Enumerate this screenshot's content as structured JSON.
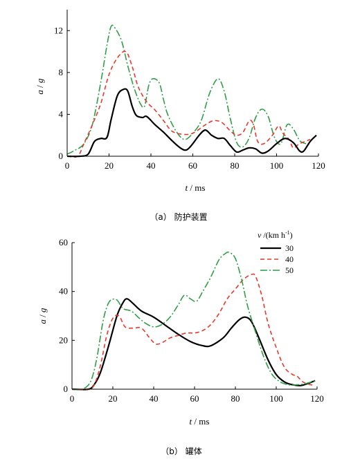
{
  "chart_data": [
    {
      "type": "line",
      "id": "a",
      "caption": "（a） 防护装置",
      "xlabel_var": "t",
      "xlabel_unit": " / ms",
      "ylabel_var1": "a",
      "ylabel_sep": " / ",
      "ylabel_var2": "g",
      "xlim": [
        0,
        120
      ],
      "ylim": [
        0,
        14
      ],
      "xticks": [
        0,
        20,
        40,
        60,
        80,
        100,
        120
      ],
      "yticks": [
        0,
        4,
        8,
        12
      ],
      "yticklabels": [
        "0",
        "4",
        "8",
        "12"
      ],
      "series": [
        {
          "key": "v50",
          "color": "#2e9e45",
          "dash": "10,3,2,3",
          "width": 1.6,
          "points": [
            [
              0,
              0.2
            ],
            [
              4,
              0.6
            ],
            [
              8,
              1.2
            ],
            [
              12,
              3
            ],
            [
              16,
              7
            ],
            [
              19,
              10.6
            ],
            [
              21,
              12.4
            ],
            [
              23,
              12.2
            ],
            [
              26,
              11
            ],
            [
              29,
              8.6
            ],
            [
              32,
              6.5
            ],
            [
              35,
              5
            ],
            [
              37,
              4.8
            ],
            [
              39,
              6.8
            ],
            [
              41,
              7.4
            ],
            [
              44,
              7
            ],
            [
              46,
              5.4
            ],
            [
              48,
              4
            ],
            [
              52,
              2.4
            ],
            [
              56,
              1.6
            ],
            [
              60,
              2.2
            ],
            [
              64,
              3.4
            ],
            [
              68,
              6
            ],
            [
              72,
              7.4
            ],
            [
              75,
              6.2
            ],
            [
              78,
              3.5
            ],
            [
              81,
              1.3
            ],
            [
              84,
              0.9
            ],
            [
              87,
              1.8
            ],
            [
              90,
              3.7
            ],
            [
              93,
              4.5
            ],
            [
              96,
              3.8
            ],
            [
              99,
              1.8
            ],
            [
              102,
              1.2
            ],
            [
              105,
              3
            ],
            [
              108,
              2.6
            ],
            [
              111,
              1.5
            ],
            [
              114,
              1.2
            ],
            [
              116,
              1.2
            ]
          ]
        },
        {
          "key": "v40",
          "color": "#e8382a",
          "dash": "6,4",
          "width": 1.6,
          "points": [
            [
              0,
              0
            ],
            [
              5,
              0
            ],
            [
              8,
              1.2
            ],
            [
              12,
              3
            ],
            [
              16,
              5
            ],
            [
              20,
              7.8
            ],
            [
              24,
              9.4
            ],
            [
              28,
              10
            ],
            [
              31,
              8.6
            ],
            [
              34,
              6.6
            ],
            [
              38,
              5.2
            ],
            [
              42,
              4.4
            ],
            [
              46,
              3.4
            ],
            [
              50,
              2.4
            ],
            [
              55,
              2.1
            ],
            [
              60,
              2.2
            ],
            [
              66,
              3
            ],
            [
              70,
              3.4
            ],
            [
              74,
              3.2
            ],
            [
              78,
              2.4
            ],
            [
              81,
              2
            ],
            [
              84,
              2.3
            ],
            [
              87,
              3.4
            ],
            [
              89,
              3
            ],
            [
              91,
              1.4
            ],
            [
              94,
              1.2
            ],
            [
              98,
              2
            ],
            [
              101,
              2.9
            ],
            [
              103,
              2.2
            ],
            [
              106,
              1.6
            ],
            [
              108,
              0.8
            ],
            [
              111,
              1.2
            ],
            [
              116,
              1.6
            ]
          ]
        },
        {
          "key": "v30",
          "color": "#000000",
          "dash": "",
          "width": 2.2,
          "points": [
            [
              0,
              0
            ],
            [
              6,
              0
            ],
            [
              10,
              0.2
            ],
            [
              13,
              1.4
            ],
            [
              16,
              1.7
            ],
            [
              19,
              1.8
            ],
            [
              21,
              3.5
            ],
            [
              24,
              5.8
            ],
            [
              27,
              6.4
            ],
            [
              29,
              6.2
            ],
            [
              31,
              4.8
            ],
            [
              33,
              3.9
            ],
            [
              36,
              3.7
            ],
            [
              38,
              3.8
            ],
            [
              42,
              3
            ],
            [
              46,
              2.3
            ],
            [
              50,
              1.5
            ],
            [
              54,
              0.8
            ],
            [
              57,
              0.6
            ],
            [
              60,
              1.2
            ],
            [
              63,
              2
            ],
            [
              66,
              2.5
            ],
            [
              69,
              2
            ],
            [
              72,
              1.7
            ],
            [
              75,
              1.7
            ],
            [
              78,
              1
            ],
            [
              81,
              0.4
            ],
            [
              84,
              0.6
            ],
            [
              87,
              0.8
            ],
            [
              90,
              0.7
            ],
            [
              93,
              0.3
            ],
            [
              96,
              0.5
            ],
            [
              100,
              1.2
            ],
            [
              104,
              1.7
            ],
            [
              108,
              1.3
            ],
            [
              111,
              0.5
            ],
            [
              113,
              0.5
            ],
            [
              116,
              1.4
            ],
            [
              119,
              2
            ]
          ]
        }
      ]
    },
    {
      "type": "line",
      "id": "b",
      "caption": "（b） 罐体",
      "xlabel_var": "t",
      "xlabel_unit": " / ms",
      "ylabel_var1": "a",
      "ylabel_sep": " / ",
      "ylabel_var2": "g",
      "xlim": [
        0,
        120
      ],
      "ylim": [
        0,
        60
      ],
      "xticks": [
        0,
        20,
        40,
        60,
        80,
        100,
        120
      ],
      "yticks": [
        0,
        20,
        40,
        60
      ],
      "yticklabels": [
        "0",
        "20",
        "40",
        "60"
      ],
      "legend_title_var": "v",
      "legend_title_unit": " /(km h",
      "legend_title_sup": "-1",
      "legend_title_end": ")",
      "legend_placement": "top-right",
      "series": [
        {
          "key": "v30",
          "name": "30",
          "color": "#000000",
          "dash": "",
          "width": 2.2,
          "points": [
            [
              0,
              0
            ],
            [
              8,
              0
            ],
            [
              11,
              2
            ],
            [
              14,
              7
            ],
            [
              18,
              18
            ],
            [
              22,
              30
            ],
            [
              25,
              35.5
            ],
            [
              27,
              37
            ],
            [
              30,
              35
            ],
            [
              34,
              32
            ],
            [
              40,
              29.5
            ],
            [
              46,
              26
            ],
            [
              52,
              22.5
            ],
            [
              58,
              19.5
            ],
            [
              64,
              17.8
            ],
            [
              68,
              17.8
            ],
            [
              74,
              21
            ],
            [
              78,
              25
            ],
            [
              82,
              28.5
            ],
            [
              85,
              29.5
            ],
            [
              88,
              27.5
            ],
            [
              92,
              20
            ],
            [
              96,
              12
            ],
            [
              100,
              6
            ],
            [
              104,
              3
            ],
            [
              108,
              1.8
            ],
            [
              112,
              1.5
            ],
            [
              116,
              2.5
            ],
            [
              119,
              3.5
            ]
          ]
        },
        {
          "key": "v40",
          "name": "40",
          "color": "#e8382a",
          "dash": "6,4",
          "width": 1.6,
          "points": [
            [
              0,
              0
            ],
            [
              8,
              0
            ],
            [
              11,
              2
            ],
            [
              14,
              10
            ],
            [
              17,
              22
            ],
            [
              20,
              29
            ],
            [
              23,
              30
            ],
            [
              26,
              25.5
            ],
            [
              30,
              25
            ],
            [
              34,
              25
            ],
            [
              38,
              21
            ],
            [
              41,
              18.5
            ],
            [
              44,
              19
            ],
            [
              48,
              21
            ],
            [
              52,
              22
            ],
            [
              56,
              23
            ],
            [
              60,
              23
            ],
            [
              64,
              24
            ],
            [
              68,
              26.5
            ],
            [
              72,
              31
            ],
            [
              76,
              37
            ],
            [
              80,
              41
            ],
            [
              84,
              45
            ],
            [
              88,
              47
            ],
            [
              90,
              46
            ],
            [
              93,
              38
            ],
            [
              96,
              27
            ],
            [
              100,
              17
            ],
            [
              104,
              9
            ],
            [
              108,
              6
            ],
            [
              110,
              5.5
            ],
            [
              113,
              3
            ],
            [
              116,
              2
            ],
            [
              119,
              1.5
            ]
          ]
        },
        {
          "key": "v50",
          "name": "50",
          "color": "#2e9e45",
          "dash": "10,3,2,3",
          "width": 1.6,
          "points": [
            [
              0,
              0
            ],
            [
              5,
              0
            ],
            [
              9,
              3
            ],
            [
              12,
              12
            ],
            [
              15,
              27
            ],
            [
              17,
              33.5
            ],
            [
              19,
              36.5
            ],
            [
              22,
              36.5
            ],
            [
              25,
              33
            ],
            [
              29,
              32
            ],
            [
              33,
              29
            ],
            [
              36,
              27
            ],
            [
              40,
              25.5
            ],
            [
              44,
              26.5
            ],
            [
              48,
              29.5
            ],
            [
              52,
              34.5
            ],
            [
              55,
              38.5
            ],
            [
              58,
              37
            ],
            [
              61,
              36
            ],
            [
              64,
              40
            ],
            [
              68,
              46
            ],
            [
              72,
              53
            ],
            [
              75,
              55.5
            ],
            [
              77,
              56
            ],
            [
              80,
              53.5
            ],
            [
              83,
              45
            ],
            [
              86,
              34
            ],
            [
              90,
              23
            ],
            [
              94,
              13
            ],
            [
              98,
              6
            ],
            [
              102,
              3
            ],
            [
              106,
              1.8
            ],
            [
              110,
              1.8
            ],
            [
              114,
              2.2
            ],
            [
              119,
              3.5
            ]
          ]
        }
      ]
    }
  ]
}
